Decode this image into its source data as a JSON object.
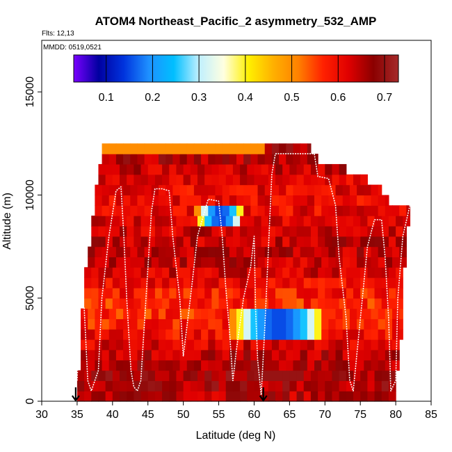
{
  "chart_data": {
    "type": "heatmap",
    "title": "ATOM4 Northeast_Pacific_2 asymmetry_532_AMP",
    "flights_label": "Flts: 12,13",
    "date_label": "MMDD: 0519,0521",
    "xlabel": "Latitude (deg N)",
    "ylabel": "Altitude (m)",
    "xlim": [
      30,
      85
    ],
    "ylim": [
      0,
      17500
    ],
    "xticks": [
      30,
      35,
      40,
      45,
      50,
      55,
      60,
      65,
      70,
      75,
      80,
      85
    ],
    "yticks": [
      0,
      5000,
      10000,
      15000
    ],
    "colorbar": {
      "range": [
        0.03,
        0.73
      ],
      "ticks": [
        0.1,
        0.2,
        0.3,
        0.4,
        0.5,
        0.6,
        0.7
      ],
      "stops": [
        "#7a00ff",
        "#0000a0",
        "#0033dd",
        "#1e90ff",
        "#00bfff",
        "#bfefff",
        "#ffffe0",
        "#fff000",
        "#ffb000",
        "#ff8000",
        "#ff2000",
        "#e00000",
        "#8b0000",
        "#a52a2a"
      ]
    },
    "bin": {
      "dlat": 1.0,
      "dalt": 500
    },
    "coverage": [
      {
        "alt": 500,
        "lat": [
          35,
          80
        ]
      },
      {
        "alt": 1000,
        "lat": [
          35,
          80
        ]
      },
      {
        "alt": 1500,
        "lat": [
          35,
          80
        ]
      },
      {
        "alt": 2000,
        "lat": [
          35.5,
          80.5
        ]
      },
      {
        "alt": 2500,
        "lat": [
          35.5,
          80.5
        ]
      },
      {
        "alt": 3000,
        "lat": [
          35.5,
          80.5
        ]
      },
      {
        "alt": 3500,
        "lat": [
          35.5,
          81
        ]
      },
      {
        "alt": 4000,
        "lat": [
          35.5,
          81
        ]
      },
      {
        "alt": 4500,
        "lat": [
          35.5,
          81
        ]
      },
      {
        "alt": 5000,
        "lat": [
          36,
          81
        ]
      },
      {
        "alt": 5500,
        "lat": [
          36,
          81
        ]
      },
      {
        "alt": 6000,
        "lat": [
          36,
          81
        ]
      },
      {
        "alt": 6500,
        "lat": [
          36,
          81
        ]
      },
      {
        "alt": 7000,
        "lat": [
          36.5,
          81.5
        ]
      },
      {
        "alt": 7500,
        "lat": [
          36.5,
          81.5
        ]
      },
      {
        "alt": 8000,
        "lat": [
          37,
          81.5
        ]
      },
      {
        "alt": 8500,
        "lat": [
          37,
          81.5
        ]
      },
      {
        "alt": 9000,
        "lat": [
          37,
          82
        ]
      },
      {
        "alt": 9500,
        "lat": [
          37.5,
          82
        ]
      },
      {
        "alt": 10000,
        "lat": [
          37.5,
          79
        ]
      },
      {
        "alt": 10500,
        "lat": [
          37.5,
          78
        ]
      },
      {
        "alt": 11000,
        "lat": [
          38,
          76
        ]
      },
      {
        "alt": 11500,
        "lat": [
          38,
          73
        ]
      },
      {
        "alt": 12000,
        "lat": [
          38.5,
          69
        ]
      },
      {
        "alt": 12500,
        "lat": [
          38.5,
          68
        ]
      }
    ],
    "features": [
      {
        "name": "low-asymmetry-upper",
        "lat": [
          52,
          58.5
        ],
        "alt": [
          8500,
          9500
        ],
        "value": 0.15
      },
      {
        "name": "low-asymmetry-middle",
        "lat": [
          57,
          70
        ],
        "alt": [
          3000,
          4500
        ],
        "value": 0.15
      },
      {
        "name": "high-asymmetry-bottom",
        "lat": [
          60,
          67
        ],
        "alt": [
          1000,
          1500
        ],
        "value": 0.7
      },
      {
        "name": "moderate-top",
        "lat": [
          39,
          62
        ],
        "alt": [
          12000,
          12500
        ],
        "value": 0.5
      }
    ],
    "flight_track": [
      [
        35,
        1000
      ],
      [
        35.5,
        5000
      ],
      [
        36,
        4500
      ],
      [
        36.5,
        1000
      ],
      [
        37,
        500
      ],
      [
        38,
        1500
      ],
      [
        38.5,
        5000
      ],
      [
        39,
        6500
      ],
      [
        39.5,
        8000
      ],
      [
        40.5,
        10200
      ],
      [
        41.2,
        10400
      ],
      [
        41.6,
        8000
      ],
      [
        42,
        5000
      ],
      [
        42.6,
        1500
      ],
      [
        43,
        700
      ],
      [
        43.5,
        500
      ],
      [
        44,
        1000
      ],
      [
        45.5,
        9200
      ],
      [
        46,
        10300
      ],
      [
        47,
        10300
      ],
      [
        48,
        10200
      ],
      [
        48.5,
        8000
      ],
      [
        49.5,
        5000
      ],
      [
        50,
        2200
      ],
      [
        51,
        5000
      ],
      [
        52,
        8000
      ],
      [
        53.5,
        9800
      ],
      [
        55,
        9700
      ],
      [
        55.5,
        8000
      ],
      [
        56,
        5500
      ],
      [
        56.5,
        3500
      ],
      [
        57,
        1000
      ],
      [
        57.5,
        2500
      ],
      [
        58.5,
        5000
      ],
      [
        59.5,
        6500
      ],
      [
        60,
        8000
      ],
      [
        60.2,
        4500
      ],
      [
        60.5,
        2000
      ],
      [
        61,
        300
      ],
      [
        61.5,
        3500
      ],
      [
        62.5,
        11000
      ],
      [
        63,
        12000
      ],
      [
        66,
        12000
      ],
      [
        68.5,
        12000
      ],
      [
        69,
        10900
      ],
      [
        70.5,
        10800
      ],
      [
        71.5,
        9500
      ],
      [
        72,
        7000
      ],
      [
        73,
        4000
      ],
      [
        73.5,
        1000
      ],
      [
        74,
        500
      ],
      [
        75,
        4000
      ],
      [
        76,
        7500
      ],
      [
        77,
        8800
      ],
      [
        78,
        8800
      ],
      [
        78.5,
        7000
      ],
      [
        79,
        4000
      ],
      [
        79.3,
        500
      ],
      [
        80,
        1000
      ],
      [
        80.3,
        5000
      ],
      [
        81,
        8000
      ],
      [
        82,
        9500
      ]
    ],
    "arrows_lat": [
      34.8,
      61.3
    ]
  }
}
